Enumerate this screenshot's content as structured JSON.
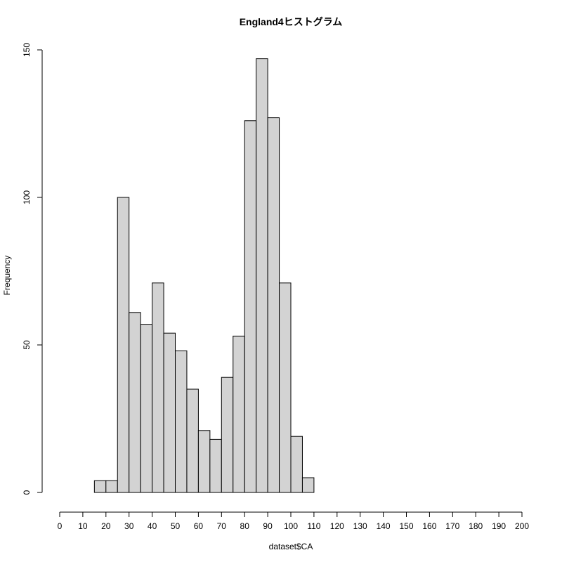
{
  "chart_data": {
    "type": "bar",
    "title": "England4ヒストグラム",
    "xlabel": "dataset$CA",
    "ylabel": "Frequency",
    "xlim": [
      0,
      200
    ],
    "ylim": [
      0,
      150
    ],
    "x_ticks": [
      "0",
      "10",
      "20",
      "30",
      "40",
      "50",
      "60",
      "70",
      "80",
      "90",
      "100",
      "110",
      "120",
      "130",
      "140",
      "150",
      "160",
      "170",
      "180",
      "190",
      "200"
    ],
    "y_ticks": [
      "0",
      "50",
      "100",
      "150"
    ],
    "bin_width": 5,
    "bins": [
      {
        "start": 0,
        "end": 5,
        "count": 0
      },
      {
        "start": 5,
        "end": 10,
        "count": 0
      },
      {
        "start": 10,
        "end": 15,
        "count": 0
      },
      {
        "start": 15,
        "end": 20,
        "count": 4
      },
      {
        "start": 20,
        "end": 25,
        "count": 4
      },
      {
        "start": 25,
        "end": 30,
        "count": 100
      },
      {
        "start": 30,
        "end": 35,
        "count": 61
      },
      {
        "start": 35,
        "end": 40,
        "count": 57
      },
      {
        "start": 40,
        "end": 45,
        "count": 71
      },
      {
        "start": 45,
        "end": 50,
        "count": 54
      },
      {
        "start": 50,
        "end": 55,
        "count": 48
      },
      {
        "start": 55,
        "end": 60,
        "count": 35
      },
      {
        "start": 60,
        "end": 65,
        "count": 21
      },
      {
        "start": 65,
        "end": 70,
        "count": 18
      },
      {
        "start": 70,
        "end": 75,
        "count": 39
      },
      {
        "start": 75,
        "end": 80,
        "count": 53
      },
      {
        "start": 80,
        "end": 85,
        "count": 126
      },
      {
        "start": 85,
        "end": 90,
        "count": 147
      },
      {
        "start": 90,
        "end": 95,
        "count": 127
      },
      {
        "start": 95,
        "end": 100,
        "count": 71
      },
      {
        "start": 100,
        "end": 105,
        "count": 19
      },
      {
        "start": 105,
        "end": 110,
        "count": 5
      },
      {
        "start": 110,
        "end": 115,
        "count": 0
      },
      {
        "start": 115,
        "end": 120,
        "count": 0
      },
      {
        "start": 120,
        "end": 125,
        "count": 0
      },
      {
        "start": 125,
        "end": 130,
        "count": 0
      },
      {
        "start": 130,
        "end": 135,
        "count": 0
      },
      {
        "start": 135,
        "end": 140,
        "count": 0
      },
      {
        "start": 140,
        "end": 145,
        "count": 0
      },
      {
        "start": 145,
        "end": 150,
        "count": 0
      },
      {
        "start": 150,
        "end": 155,
        "count": 0
      },
      {
        "start": 155,
        "end": 160,
        "count": 0
      },
      {
        "start": 160,
        "end": 165,
        "count": 0
      },
      {
        "start": 165,
        "end": 170,
        "count": 0
      },
      {
        "start": 170,
        "end": 175,
        "count": 0
      },
      {
        "start": 175,
        "end": 180,
        "count": 0
      },
      {
        "start": 180,
        "end": 185,
        "count": 0
      },
      {
        "start": 185,
        "end": 190,
        "count": 0
      },
      {
        "start": 190,
        "end": 195,
        "count": 0
      },
      {
        "start": 195,
        "end": 200,
        "count": 0
      }
    ],
    "bar_fill": "#d3d3d3",
    "bar_stroke": "#000000",
    "grid": false,
    "legend": "none"
  }
}
